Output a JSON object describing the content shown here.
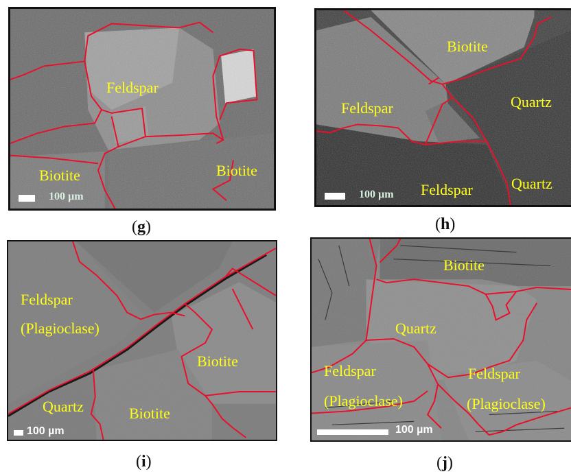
{
  "panels": {
    "g": {
      "caption_open": "(",
      "caption_letter": "g",
      "caption_close": ")",
      "minerals": [
        "Feldspar",
        "Biotite",
        "Biotite"
      ],
      "scale": "100 µm"
    },
    "h": {
      "caption_open": "(",
      "caption_letter": "h",
      "caption_close": ")",
      "minerals": [
        "Biotite",
        "Feldspar",
        "Quartz",
        "Feldspar",
        "Quartz"
      ],
      "scale": "100 µm"
    },
    "i": {
      "caption_open": "(",
      "caption_letter": "i",
      "caption_close": ")",
      "minerals": [
        "Feldspar",
        "(Plagioclase)",
        "Biotite",
        "Quartz",
        "Biotite"
      ],
      "scale": "100 µm"
    },
    "j": {
      "caption_open": "(",
      "caption_letter": "j",
      "caption_close": ")",
      "minerals": [
        "Biotite",
        "Quartz",
        "Feldspar",
        "(Plagioclase)",
        "Feldspar",
        "(Plagioclase)"
      ],
      "scale": "100 µm"
    }
  },
  "colors": {
    "label_yellow": "#ffff1a",
    "boundary_red": "#e8102a"
  }
}
